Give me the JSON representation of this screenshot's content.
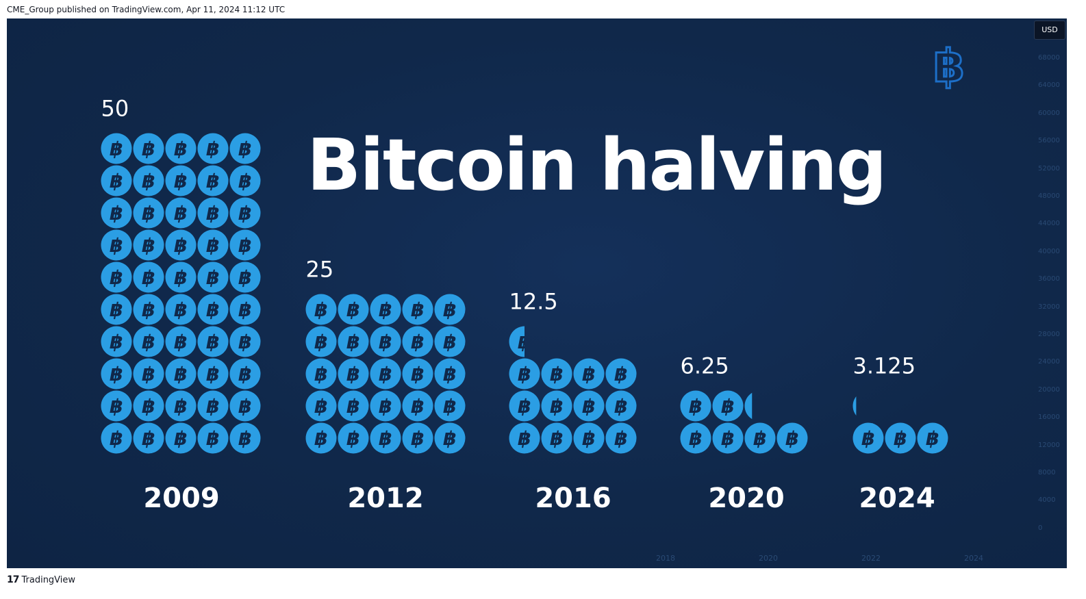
{
  "header": {
    "published_line": "CME_Group published on TradingView.com, Apr 11, 2024 11:12 UTC"
  },
  "footer": {
    "brand": "TradingView",
    "brand_logo": "17"
  },
  "price_axis": {
    "currency": "USD",
    "ticks": [
      "68000",
      "64000",
      "60000",
      "56000",
      "52000",
      "48000",
      "44000",
      "40000",
      "36000",
      "32000",
      "28000",
      "24000",
      "20000",
      "16000",
      "12000",
      "8000",
      "4000",
      "0"
    ]
  },
  "time_axis": {
    "ticks": [
      "2018",
      "2020",
      "2022",
      "2024"
    ]
  },
  "colors": {
    "background": "#10284a",
    "coin": "#2b9ee4",
    "coin_symbol": "#10284a",
    "text": "#ffffff",
    "watermark_icon": "#1d6fc8"
  },
  "watermark": {
    "icon": "bitcoin-outline-icon"
  },
  "chart_data": {
    "type": "bar",
    "title": "Bitcoin halving",
    "categories": [
      "2009",
      "2012",
      "2016",
      "2020",
      "2024"
    ],
    "value_labels": [
      "50",
      "25",
      "12.5",
      "6.25",
      "3.125"
    ],
    "values": [
      50,
      25,
      12.5,
      6.25,
      3.125
    ],
    "unit_per_icon": 1,
    "icons_per_row": [
      5,
      5,
      4,
      4,
      3
    ]
  }
}
